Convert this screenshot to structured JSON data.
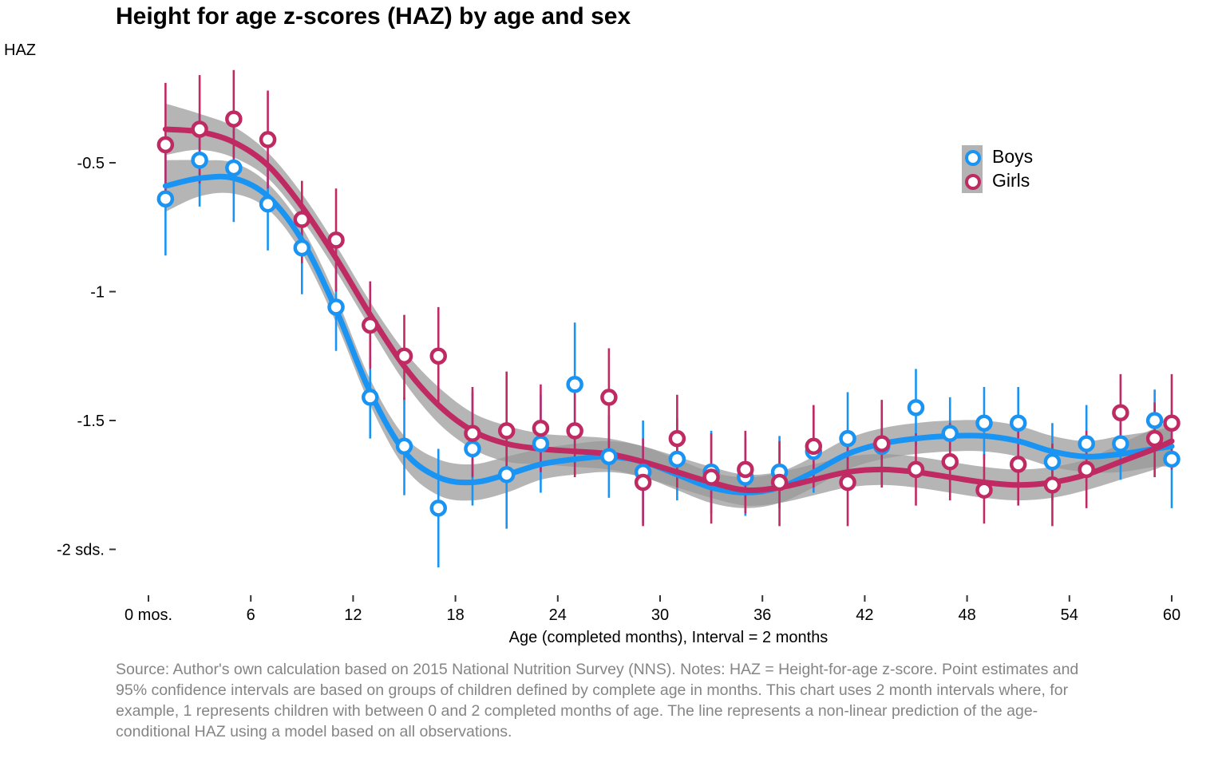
{
  "chart_data": {
    "type": "scatter",
    "title": "Height for age z-scores (HAZ) by age and sex",
    "ylabel": "HAZ",
    "xlabel": "Age (completed months), Interval = 2 months",
    "caption": "Source: Author's own calculation based on 2015 National Nutrition Survey (NNS). Notes: HAZ = Height-for-age z-score. Point estimates and 95% confidence intervals are based on groups of children defined by complete age in months. This chart uses 2 month intervals where, for example, 1 represents children with between 0 and 2 completed months of age. The line represents a non-linear prediction of the age-conditional HAZ using a model based on all observations.",
    "xlim": [
      0,
      60
    ],
    "ylim": [
      -2.15,
      -0.25
    ],
    "x_ticks": [
      {
        "value": 0,
        "label": "0 mos."
      },
      {
        "value": 6,
        "label": "6"
      },
      {
        "value": 12,
        "label": "12"
      },
      {
        "value": 18,
        "label": "18"
      },
      {
        "value": 24,
        "label": "24"
      },
      {
        "value": 30,
        "label": "30"
      },
      {
        "value": 36,
        "label": "36"
      },
      {
        "value": 42,
        "label": "42"
      },
      {
        "value": 48,
        "label": "48"
      },
      {
        "value": 54,
        "label": "54"
      },
      {
        "value": 60,
        "label": "60"
      }
    ],
    "y_ticks": [
      {
        "value": -0.5,
        "label": "-0.5"
      },
      {
        "value": -1,
        "label": "-1"
      },
      {
        "value": -1.5,
        "label": "-1.5"
      },
      {
        "value": -2,
        "label": "-2 sds."
      }
    ],
    "grid": false,
    "legend_position": "top-right",
    "series": [
      {
        "name": "Boys",
        "color": "#1a94f2",
        "points": [
          {
            "x": 1,
            "y": -0.64,
            "lo": -0.86,
            "hi": -0.42
          },
          {
            "x": 3,
            "y": -0.49,
            "lo": -0.67,
            "hi": -0.31
          },
          {
            "x": 5,
            "y": -0.52,
            "lo": -0.73,
            "hi": -0.31
          },
          {
            "x": 7,
            "y": -0.66,
            "lo": -0.84,
            "hi": -0.48
          },
          {
            "x": 9,
            "y": -0.83,
            "lo": -1.01,
            "hi": -0.65
          },
          {
            "x": 11,
            "y": -1.06,
            "lo": -1.23,
            "hi": -0.89
          },
          {
            "x": 13,
            "y": -1.41,
            "lo": -1.57,
            "hi": -1.25
          },
          {
            "x": 15,
            "y": -1.6,
            "lo": -1.79,
            "hi": -1.41
          },
          {
            "x": 17,
            "y": -1.84,
            "lo": -2.07,
            "hi": -1.61
          },
          {
            "x": 19,
            "y": -1.61,
            "lo": -1.83,
            "hi": -1.39
          },
          {
            "x": 21,
            "y": -1.71,
            "lo": -1.92,
            "hi": -1.5
          },
          {
            "x": 23,
            "y": -1.59,
            "lo": -1.78,
            "hi": -1.4
          },
          {
            "x": 25,
            "y": -1.36,
            "lo": -1.6,
            "hi": -1.12
          },
          {
            "x": 27,
            "y": -1.64,
            "lo": -1.8,
            "hi": -1.48
          },
          {
            "x": 29,
            "y": -1.7,
            "lo": -1.9,
            "hi": -1.5
          },
          {
            "x": 31,
            "y": -1.65,
            "lo": -1.81,
            "hi": -1.49
          },
          {
            "x": 33,
            "y": -1.7,
            "lo": -1.86,
            "hi": -1.54
          },
          {
            "x": 35,
            "y": -1.72,
            "lo": -1.87,
            "hi": -1.57
          },
          {
            "x": 37,
            "y": -1.7,
            "lo": -1.84,
            "hi": -1.56
          },
          {
            "x": 39,
            "y": -1.62,
            "lo": -1.78,
            "hi": -1.46
          },
          {
            "x": 41,
            "y": -1.57,
            "lo": -1.75,
            "hi": -1.39
          },
          {
            "x": 43,
            "y": -1.6,
            "lo": -1.76,
            "hi": -1.44
          },
          {
            "x": 45,
            "y": -1.45,
            "lo": -1.6,
            "hi": -1.3
          },
          {
            "x": 47,
            "y": -1.55,
            "lo": -1.69,
            "hi": -1.41
          },
          {
            "x": 49,
            "y": -1.51,
            "lo": -1.65,
            "hi": -1.37
          },
          {
            "x": 51,
            "y": -1.51,
            "lo": -1.65,
            "hi": -1.37
          },
          {
            "x": 53,
            "y": -1.66,
            "lo": -1.81,
            "hi": -1.51
          },
          {
            "x": 55,
            "y": -1.59,
            "lo": -1.74,
            "hi": -1.44
          },
          {
            "x": 57,
            "y": -1.59,
            "lo": -1.73,
            "hi": -1.45
          },
          {
            "x": 59,
            "y": -1.5,
            "lo": -1.62,
            "hi": -1.38
          },
          {
            "x": 60,
            "y": -1.65,
            "lo": -1.84,
            "hi": -1.46
          }
        ],
        "fit": [
          {
            "x": 1,
            "y": -0.59,
            "lo": -0.69,
            "hi": -0.49
          },
          {
            "x": 3,
            "y": -0.56,
            "lo": -0.63,
            "hi": -0.49
          },
          {
            "x": 5,
            "y": -0.56,
            "lo": -0.62,
            "hi": -0.5
          },
          {
            "x": 7,
            "y": -0.63,
            "lo": -0.68,
            "hi": -0.58
          },
          {
            "x": 9,
            "y": -0.8,
            "lo": -0.85,
            "hi": -0.75
          },
          {
            "x": 11,
            "y": -1.07,
            "lo": -1.12,
            "hi": -1.02
          },
          {
            "x": 13,
            "y": -1.39,
            "lo": -1.44,
            "hi": -1.34
          },
          {
            "x": 15,
            "y": -1.62,
            "lo": -1.68,
            "hi": -1.56
          },
          {
            "x": 17,
            "y": -1.72,
            "lo": -1.79,
            "hi": -1.65
          },
          {
            "x": 19,
            "y": -1.74,
            "lo": -1.81,
            "hi": -1.67
          },
          {
            "x": 21,
            "y": -1.71,
            "lo": -1.78,
            "hi": -1.64
          },
          {
            "x": 23,
            "y": -1.67,
            "lo": -1.73,
            "hi": -1.61
          },
          {
            "x": 25,
            "y": -1.65,
            "lo": -1.71,
            "hi": -1.59
          },
          {
            "x": 27,
            "y": -1.64,
            "lo": -1.7,
            "hi": -1.58
          },
          {
            "x": 29,
            "y": -1.66,
            "lo": -1.72,
            "hi": -1.6
          },
          {
            "x": 31,
            "y": -1.71,
            "lo": -1.77,
            "hi": -1.65
          },
          {
            "x": 33,
            "y": -1.76,
            "lo": -1.82,
            "hi": -1.7
          },
          {
            "x": 35,
            "y": -1.78,
            "lo": -1.84,
            "hi": -1.72
          },
          {
            "x": 37,
            "y": -1.76,
            "lo": -1.82,
            "hi": -1.7
          },
          {
            "x": 39,
            "y": -1.7,
            "lo": -1.76,
            "hi": -1.64
          },
          {
            "x": 41,
            "y": -1.63,
            "lo": -1.69,
            "hi": -1.57
          },
          {
            "x": 43,
            "y": -1.59,
            "lo": -1.65,
            "hi": -1.53
          },
          {
            "x": 45,
            "y": -1.57,
            "lo": -1.63,
            "hi": -1.51
          },
          {
            "x": 47,
            "y": -1.56,
            "lo": -1.62,
            "hi": -1.5
          },
          {
            "x": 49,
            "y": -1.56,
            "lo": -1.62,
            "hi": -1.5
          },
          {
            "x": 51,
            "y": -1.58,
            "lo": -1.64,
            "hi": -1.52
          },
          {
            "x": 53,
            "y": -1.62,
            "lo": -1.68,
            "hi": -1.56
          },
          {
            "x": 55,
            "y": -1.64,
            "lo": -1.7,
            "hi": -1.58
          },
          {
            "x": 57,
            "y": -1.63,
            "lo": -1.7,
            "hi": -1.56
          },
          {
            "x": 59,
            "y": -1.61,
            "lo": -1.68,
            "hi": -1.54
          },
          {
            "x": 60,
            "y": -1.6,
            "lo": -1.68,
            "hi": -1.52
          }
        ]
      },
      {
        "name": "Girls",
        "color": "#bf2a63",
        "points": [
          {
            "x": 1,
            "y": -0.43,
            "lo": -0.64,
            "hi": -0.19
          },
          {
            "x": 3,
            "y": -0.37,
            "lo": -0.58,
            "hi": -0.16
          },
          {
            "x": 5,
            "y": -0.33,
            "lo": -0.53,
            "hi": -0.14
          },
          {
            "x": 7,
            "y": -0.41,
            "lo": -0.6,
            "hi": -0.22
          },
          {
            "x": 9,
            "y": -0.72,
            "lo": -0.89,
            "hi": -0.57
          },
          {
            "x": 11,
            "y": -0.8,
            "lo": -1.0,
            "hi": -0.6
          },
          {
            "x": 13,
            "y": -1.13,
            "lo": -1.3,
            "hi": -0.96
          },
          {
            "x": 15,
            "y": -1.25,
            "lo": -1.42,
            "hi": -1.09
          },
          {
            "x": 17,
            "y": -1.25,
            "lo": -1.45,
            "hi": -1.06
          },
          {
            "x": 19,
            "y": -1.55,
            "lo": -1.72,
            "hi": -1.37
          },
          {
            "x": 21,
            "y": -1.54,
            "lo": -1.72,
            "hi": -1.31
          },
          {
            "x": 23,
            "y": -1.53,
            "lo": -1.7,
            "hi": -1.36
          },
          {
            "x": 25,
            "y": -1.54,
            "lo": -1.72,
            "hi": -1.36
          },
          {
            "x": 27,
            "y": -1.41,
            "lo": -1.61,
            "hi": -1.22
          },
          {
            "x": 29,
            "y": -1.74,
            "lo": -1.91,
            "hi": -1.57
          },
          {
            "x": 31,
            "y": -1.57,
            "lo": -1.76,
            "hi": -1.4
          },
          {
            "x": 33,
            "y": -1.72,
            "lo": -1.9,
            "hi": -1.55
          },
          {
            "x": 35,
            "y": -1.69,
            "lo": -1.86,
            "hi": -1.54
          },
          {
            "x": 37,
            "y": -1.74,
            "lo": -1.91,
            "hi": -1.58
          },
          {
            "x": 39,
            "y": -1.6,
            "lo": -1.76,
            "hi": -1.44
          },
          {
            "x": 41,
            "y": -1.74,
            "lo": -1.91,
            "hi": -1.56
          },
          {
            "x": 43,
            "y": -1.59,
            "lo": -1.76,
            "hi": -1.42
          },
          {
            "x": 45,
            "y": -1.69,
            "lo": -1.83,
            "hi": -1.55
          },
          {
            "x": 47,
            "y": -1.66,
            "lo": -1.81,
            "hi": -1.51
          },
          {
            "x": 49,
            "y": -1.77,
            "lo": -1.9,
            "hi": -1.63
          },
          {
            "x": 51,
            "y": -1.67,
            "lo": -1.83,
            "hi": -1.51
          },
          {
            "x": 53,
            "y": -1.75,
            "lo": -1.91,
            "hi": -1.59
          },
          {
            "x": 55,
            "y": -1.69,
            "lo": -1.84,
            "hi": -1.54
          },
          {
            "x": 57,
            "y": -1.47,
            "lo": -1.61,
            "hi": -1.32
          },
          {
            "x": 59,
            "y": -1.57,
            "lo": -1.72,
            "hi": -1.43
          },
          {
            "x": 60,
            "y": -1.51,
            "lo": -1.69,
            "hi": -1.32
          }
        ],
        "fit": [
          {
            "x": 1,
            "y": -0.37,
            "lo": -0.47,
            "hi": -0.27
          },
          {
            "x": 3,
            "y": -0.38,
            "lo": -0.45,
            "hi": -0.31
          },
          {
            "x": 5,
            "y": -0.42,
            "lo": -0.48,
            "hi": -0.36
          },
          {
            "x": 7,
            "y": -0.51,
            "lo": -0.56,
            "hi": -0.46
          },
          {
            "x": 9,
            "y": -0.67,
            "lo": -0.72,
            "hi": -0.62
          },
          {
            "x": 11,
            "y": -0.87,
            "lo": -0.92,
            "hi": -0.82
          },
          {
            "x": 13,
            "y": -1.09,
            "lo": -1.14,
            "hi": -1.04
          },
          {
            "x": 15,
            "y": -1.29,
            "lo": -1.35,
            "hi": -1.23
          },
          {
            "x": 17,
            "y": -1.44,
            "lo": -1.51,
            "hi": -1.37
          },
          {
            "x": 19,
            "y": -1.54,
            "lo": -1.61,
            "hi": -1.47
          },
          {
            "x": 21,
            "y": -1.59,
            "lo": -1.66,
            "hi": -1.52
          },
          {
            "x": 23,
            "y": -1.61,
            "lo": -1.67,
            "hi": -1.55
          },
          {
            "x": 25,
            "y": -1.62,
            "lo": -1.68,
            "hi": -1.56
          },
          {
            "x": 27,
            "y": -1.63,
            "lo": -1.69,
            "hi": -1.57
          },
          {
            "x": 29,
            "y": -1.66,
            "lo": -1.72,
            "hi": -1.6
          },
          {
            "x": 31,
            "y": -1.7,
            "lo": -1.76,
            "hi": -1.64
          },
          {
            "x": 33,
            "y": -1.74,
            "lo": -1.8,
            "hi": -1.68
          },
          {
            "x": 35,
            "y": -1.77,
            "lo": -1.83,
            "hi": -1.71
          },
          {
            "x": 37,
            "y": -1.76,
            "lo": -1.82,
            "hi": -1.7
          },
          {
            "x": 39,
            "y": -1.73,
            "lo": -1.79,
            "hi": -1.67
          },
          {
            "x": 41,
            "y": -1.7,
            "lo": -1.76,
            "hi": -1.64
          },
          {
            "x": 43,
            "y": -1.69,
            "lo": -1.75,
            "hi": -1.63
          },
          {
            "x": 45,
            "y": -1.7,
            "lo": -1.76,
            "hi": -1.64
          },
          {
            "x": 47,
            "y": -1.72,
            "lo": -1.78,
            "hi": -1.66
          },
          {
            "x": 49,
            "y": -1.74,
            "lo": -1.8,
            "hi": -1.68
          },
          {
            "x": 51,
            "y": -1.75,
            "lo": -1.81,
            "hi": -1.69
          },
          {
            "x": 53,
            "y": -1.74,
            "lo": -1.8,
            "hi": -1.68
          },
          {
            "x": 55,
            "y": -1.71,
            "lo": -1.77,
            "hi": -1.65
          },
          {
            "x": 57,
            "y": -1.66,
            "lo": -1.73,
            "hi": -1.59
          },
          {
            "x": 59,
            "y": -1.61,
            "lo": -1.69,
            "hi": -1.53
          },
          {
            "x": 60,
            "y": -1.58,
            "lo": -1.66,
            "hi": -1.5
          }
        ]
      }
    ]
  }
}
